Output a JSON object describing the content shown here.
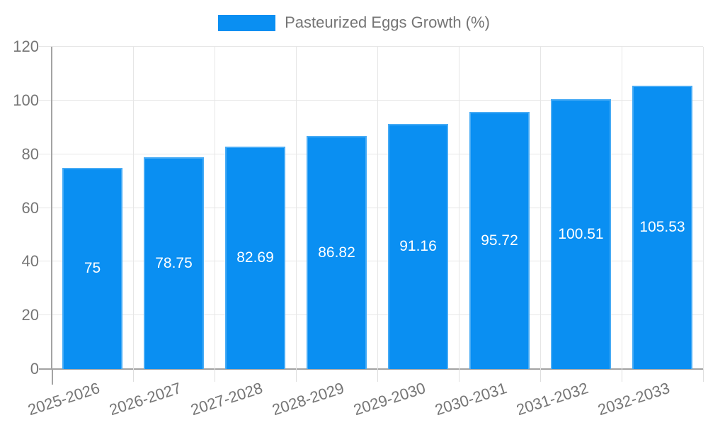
{
  "chart_data": {
    "type": "bar",
    "title": "",
    "legend": {
      "label": "Pasteurized Eggs Growth (%)",
      "position": "top-center"
    },
    "categories": [
      "2025-2026",
      "2026-2027",
      "2027-2028",
      "2028-2029",
      "2029-2030",
      "2030-2031",
      "2031-2032",
      "2032-2033"
    ],
    "values": [
      75,
      78.75,
      82.69,
      86.82,
      91.16,
      95.72,
      100.51,
      105.53
    ],
    "value_labels": [
      "75",
      "78.75",
      "82.69",
      "86.82",
      "91.16",
      "95.72",
      "100.51",
      "105.53"
    ],
    "ylim": [
      0,
      120
    ],
    "y_ticks": [
      0,
      20,
      40,
      60,
      80,
      100,
      120
    ],
    "grid": true,
    "value_label_position": "inside-center",
    "x_tick_rotation_deg": -18
  },
  "colors": {
    "bar": "#0a8ff2",
    "bar_border": "rgba(255,255,255,0.25)",
    "grid": "#e6e6e6",
    "tick": "#dedede",
    "axis": "#a3a3a3",
    "label_text": "#757575",
    "value_label_text": "#ffffff",
    "background": "#ffffff"
  }
}
